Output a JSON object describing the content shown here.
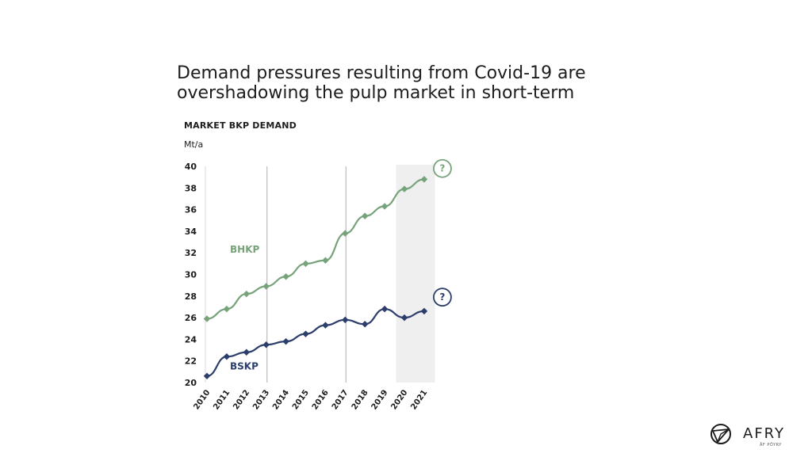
{
  "headline": {
    "line1": "Demand pressures resulting from Covid-19 are",
    "line2": "overshadowing the pulp market in short-term"
  },
  "logo": {
    "word": "AFRY",
    "sub": "ÅF PÖYRY"
  },
  "colors": {
    "bhkp": "#77a37a",
    "bskp": "#2c3e6b",
    "forecast_band": "#efefef",
    "divider": "#bdbdbd"
  },
  "chart_data": {
    "type": "line",
    "title": "MARKET BKP DEMAND",
    "ylabel": "Mt/a",
    "xlabel": "",
    "ylim": [
      20,
      40
    ],
    "yticks": [
      20,
      22,
      24,
      26,
      28,
      30,
      32,
      34,
      36,
      38,
      40
    ],
    "categories": [
      "2010",
      "2011",
      "2012",
      "2013",
      "2014",
      "2015",
      "2016",
      "2017",
      "2018",
      "2019",
      "2020",
      "2021"
    ],
    "series": [
      {
        "name": "BHKP",
        "values": [
          25.9,
          26.8,
          28.2,
          28.9,
          29.8,
          31.0,
          31.3,
          33.8,
          35.4,
          36.3,
          37.9,
          38.8
        ]
      },
      {
        "name": "BSKP",
        "values": [
          20.6,
          22.4,
          22.8,
          23.5,
          23.8,
          24.5,
          25.3,
          25.8,
          25.4,
          26.8,
          26.0,
          26.6
        ]
      }
    ],
    "vertical_dividers_after": [
      "2013",
      "2017"
    ],
    "forecast_band_categories": [
      "2020",
      "2021"
    ],
    "annotations": [
      "?",
      "?"
    ]
  }
}
